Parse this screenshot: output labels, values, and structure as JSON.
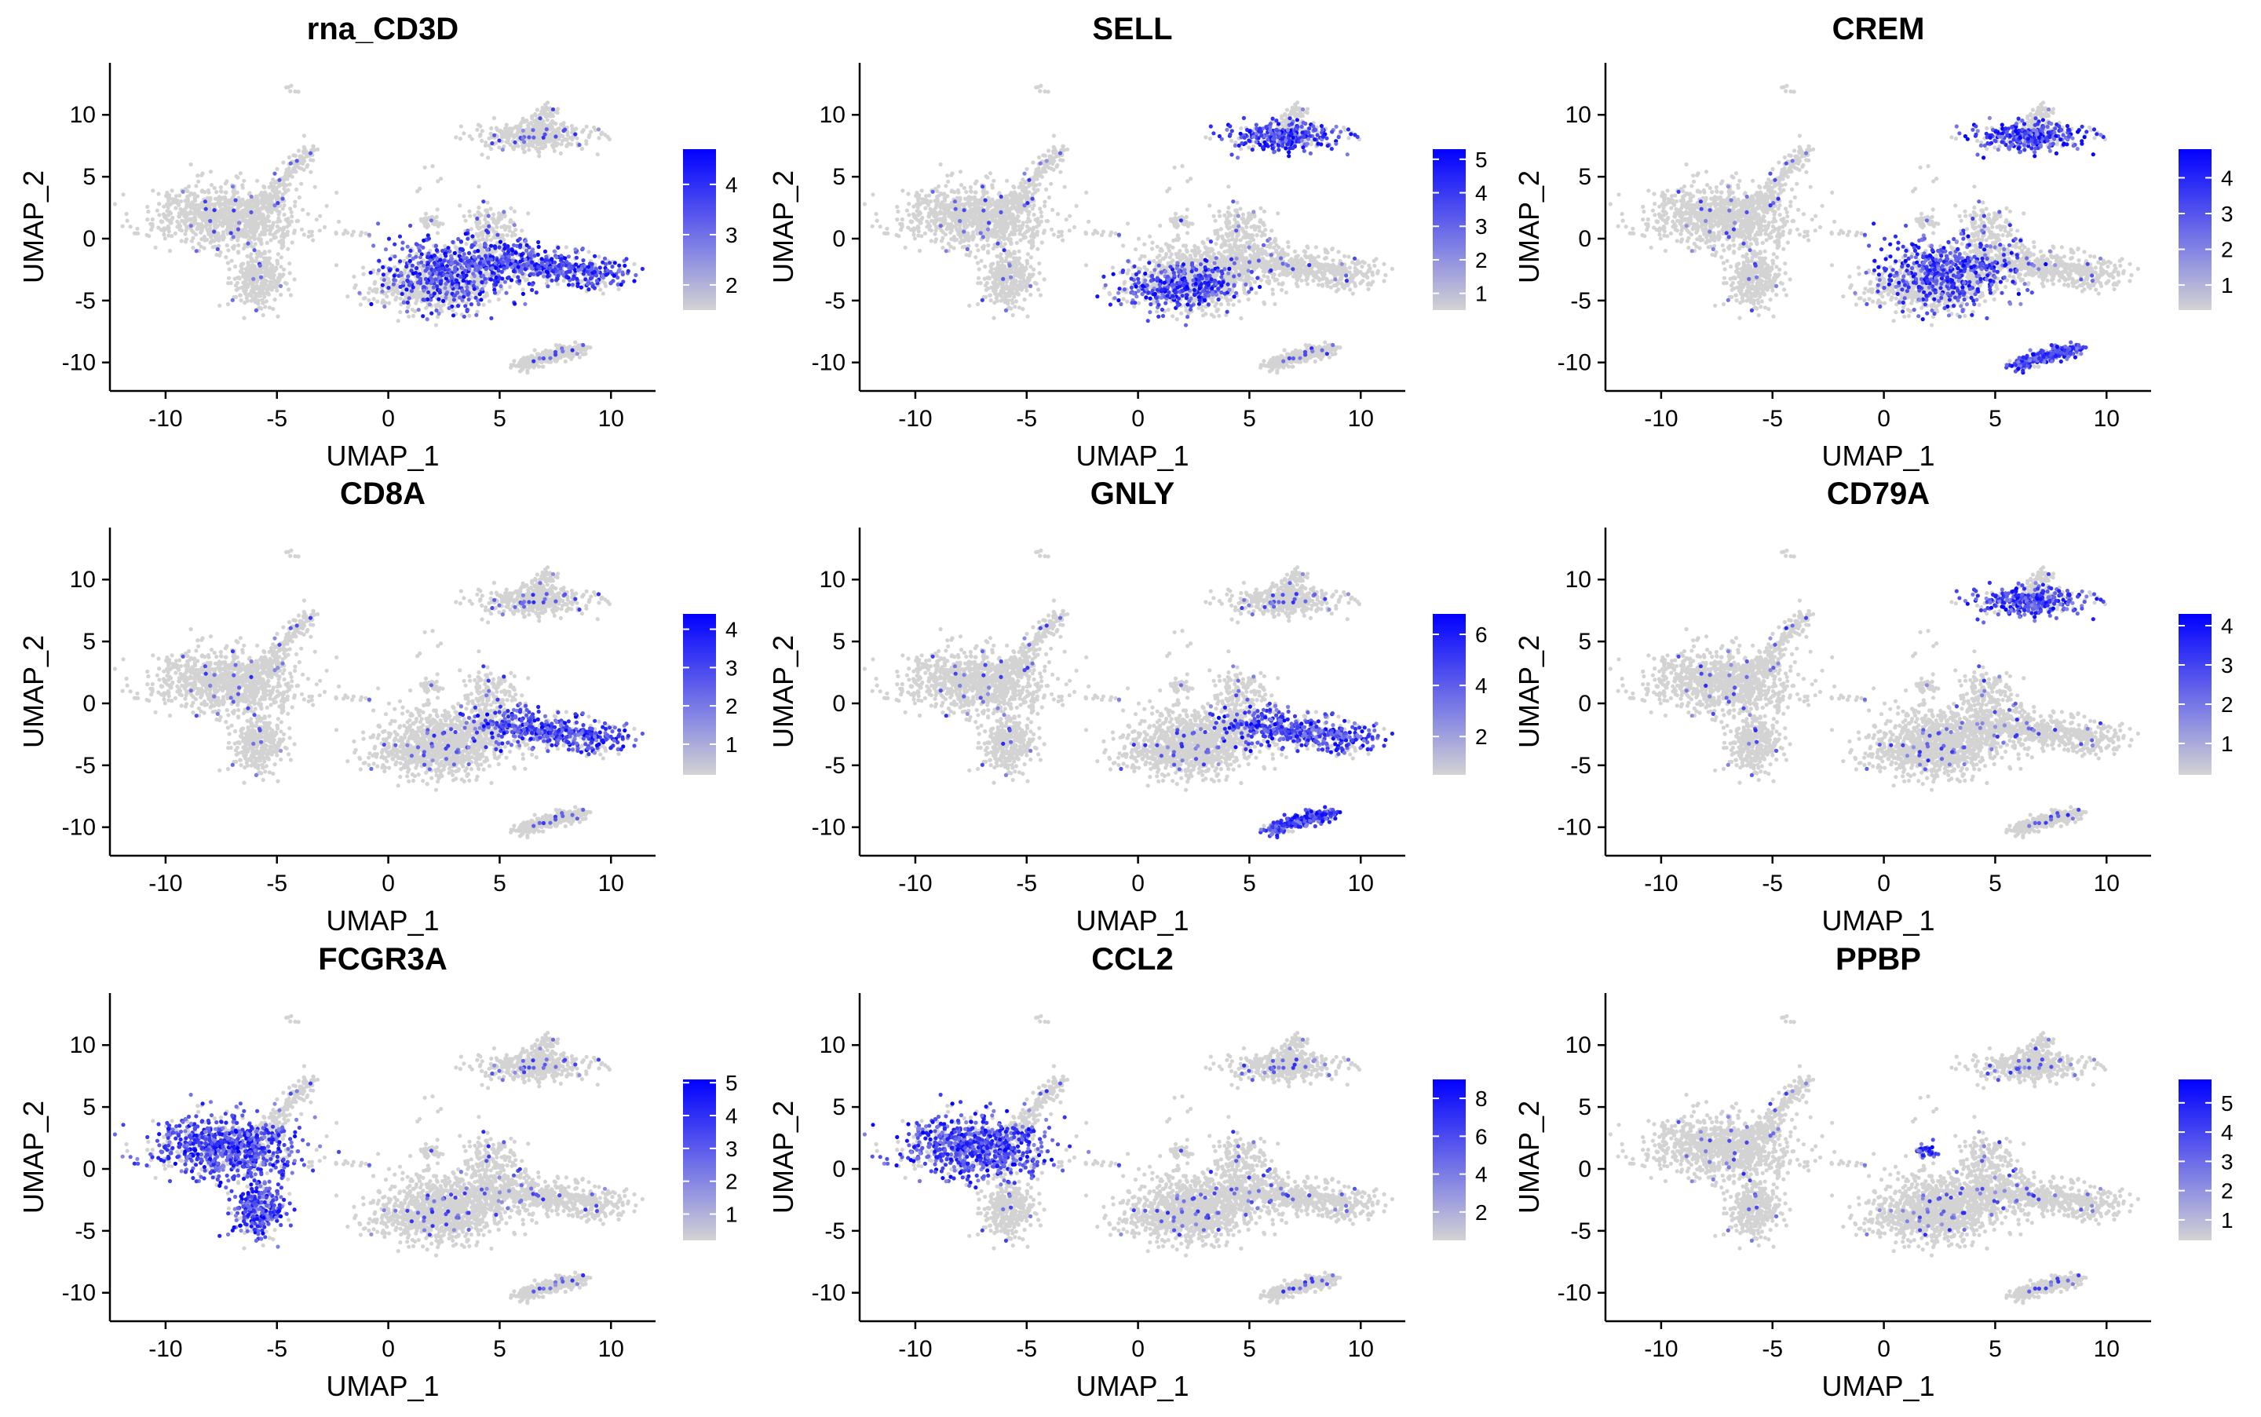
{
  "figure": {
    "background": "#ffffff"
  },
  "chart_data": [
    {
      "type": "scatter",
      "title": "rna_CD3D",
      "xlabel": "UMAP_1",
      "ylabel": "UMAP_2",
      "xlim": [
        -12.5,
        12
      ],
      "ylim": [
        -12.3,
        14.2
      ],
      "xticks": [
        -10,
        -5,
        0,
        5,
        10
      ],
      "yticks": [
        -10,
        -5,
        0,
        5,
        10
      ],
      "colorbar": {
        "low_color": "#d3d3d3",
        "high_color": "#0000ff",
        "range": [
          1.5,
          4.7
        ],
        "ticks": [
          2,
          3,
          4
        ]
      },
      "high_expression_regions": [
        "center-cluster",
        "right-tail"
      ],
      "grid": false,
      "legend": "right"
    },
    {
      "type": "scatter",
      "title": "SELL",
      "xlabel": "UMAP_1",
      "ylabel": "UMAP_2",
      "xlim": [
        -12.5,
        12
      ],
      "ylim": [
        -12.3,
        14.2
      ],
      "xticks": [
        -10,
        -5,
        0,
        5,
        10
      ],
      "yticks": [
        -10,
        -5,
        0,
        5,
        10
      ],
      "colorbar": {
        "low_color": "#d3d3d3",
        "high_color": "#0000ff",
        "range": [
          0.5,
          5.3
        ],
        "ticks": [
          1,
          2,
          3,
          4,
          5
        ]
      },
      "high_expression_regions": [
        "center-left-lobe",
        "top-right-cluster"
      ],
      "grid": false,
      "legend": "right"
    },
    {
      "type": "scatter",
      "title": "CREM",
      "xlabel": "UMAP_1",
      "ylabel": "UMAP_2",
      "xlim": [
        -12.5,
        12
      ],
      "ylim": [
        -12.3,
        14.2
      ],
      "xticks": [
        -10,
        -5,
        0,
        5,
        10
      ],
      "yticks": [
        -10,
        -5,
        0,
        5,
        10
      ],
      "colorbar": {
        "low_color": "#d3d3d3",
        "high_color": "#0000ff",
        "range": [
          0.3,
          4.8
        ],
        "ticks": [
          1,
          2,
          3,
          4
        ]
      },
      "high_expression_regions": [
        "center-cluster",
        "top-right-cluster",
        "bottom-right-island"
      ],
      "grid": false,
      "legend": "right"
    },
    {
      "type": "scatter",
      "title": "CD8A",
      "xlabel": "UMAP_1",
      "ylabel": "UMAP_2",
      "xlim": [
        -12.5,
        12
      ],
      "ylim": [
        -12.3,
        14.2
      ],
      "xticks": [
        -10,
        -5,
        0,
        5,
        10
      ],
      "yticks": [
        -10,
        -5,
        0,
        5,
        10
      ],
      "colorbar": {
        "low_color": "#d3d3d3",
        "high_color": "#0000ff",
        "range": [
          0.2,
          4.4
        ],
        "ticks": [
          1,
          2,
          3,
          4
        ]
      },
      "high_expression_regions": [
        "right-tail"
      ],
      "grid": false,
      "legend": "right"
    },
    {
      "type": "scatter",
      "title": "GNLY",
      "xlabel": "UMAP_1",
      "ylabel": "UMAP_2",
      "xlim": [
        -12.5,
        12
      ],
      "ylim": [
        -12.3,
        14.2
      ],
      "xticks": [
        -10,
        -5,
        0,
        5,
        10
      ],
      "yticks": [
        -10,
        -5,
        0,
        5,
        10
      ],
      "colorbar": {
        "low_color": "#d3d3d3",
        "high_color": "#0000ff",
        "range": [
          0.5,
          6.8
        ],
        "ticks": [
          2,
          4,
          6
        ]
      },
      "high_expression_regions": [
        "bottom-right-island",
        "right-tail"
      ],
      "grid": false,
      "legend": "right"
    },
    {
      "type": "scatter",
      "title": "CD79A",
      "xlabel": "UMAP_1",
      "ylabel": "UMAP_2",
      "xlim": [
        -12.5,
        12
      ],
      "ylim": [
        -12.3,
        14.2
      ],
      "xticks": [
        -10,
        -5,
        0,
        5,
        10
      ],
      "yticks": [
        -10,
        -5,
        0,
        5,
        10
      ],
      "colorbar": {
        "low_color": "#d3d3d3",
        "high_color": "#0000ff",
        "range": [
          0.2,
          4.3
        ],
        "ticks": [
          1,
          2,
          3,
          4
        ]
      },
      "high_expression_regions": [
        "top-right-cluster"
      ],
      "grid": false,
      "legend": "right"
    },
    {
      "type": "scatter",
      "title": "FCGR3A",
      "xlabel": "UMAP_1",
      "ylabel": "UMAP_2",
      "xlim": [
        -12.5,
        12
      ],
      "ylim": [
        -12.3,
        14.2
      ],
      "xticks": [
        -10,
        -5,
        0,
        5,
        10
      ],
      "yticks": [
        -10,
        -5,
        0,
        5,
        10
      ],
      "colorbar": {
        "low_color": "#d3d3d3",
        "high_color": "#0000ff",
        "range": [
          0.2,
          5.1
        ],
        "ticks": [
          1,
          2,
          3,
          4,
          5
        ]
      },
      "high_expression_regions": [
        "left-bottom-lobe",
        "left-cluster"
      ],
      "grid": false,
      "legend": "right"
    },
    {
      "type": "scatter",
      "title": "CCL2",
      "xlabel": "UMAP_1",
      "ylabel": "UMAP_2",
      "xlim": [
        -12.5,
        12
      ],
      "ylim": [
        -12.3,
        14.2
      ],
      "xticks": [
        -10,
        -5,
        0,
        5,
        10
      ],
      "yticks": [
        -10,
        -5,
        0,
        5,
        10
      ],
      "colorbar": {
        "low_color": "#d3d3d3",
        "high_color": "#0000ff",
        "range": [
          0.5,
          9
        ],
        "ticks": [
          2,
          4,
          6,
          8
        ]
      },
      "high_expression_regions": [
        "left-cluster"
      ],
      "grid": false,
      "legend": "right"
    },
    {
      "type": "scatter",
      "title": "PPBP",
      "xlabel": "UMAP_1",
      "ylabel": "UMAP_2",
      "xlim": [
        -12.5,
        12
      ],
      "ylim": [
        -12.3,
        14.2
      ],
      "xticks": [
        -10,
        -5,
        0,
        5,
        10
      ],
      "yticks": [
        -10,
        -5,
        0,
        5,
        10
      ],
      "colorbar": {
        "low_color": "#d3d3d3",
        "high_color": "#0000ff",
        "range": [
          0.3,
          5.8
        ],
        "ticks": [
          1,
          2,
          3,
          4,
          5
        ]
      },
      "high_expression_regions": [
        "small-platelet-cluster"
      ],
      "grid": false,
      "legend": "right"
    }
  ]
}
